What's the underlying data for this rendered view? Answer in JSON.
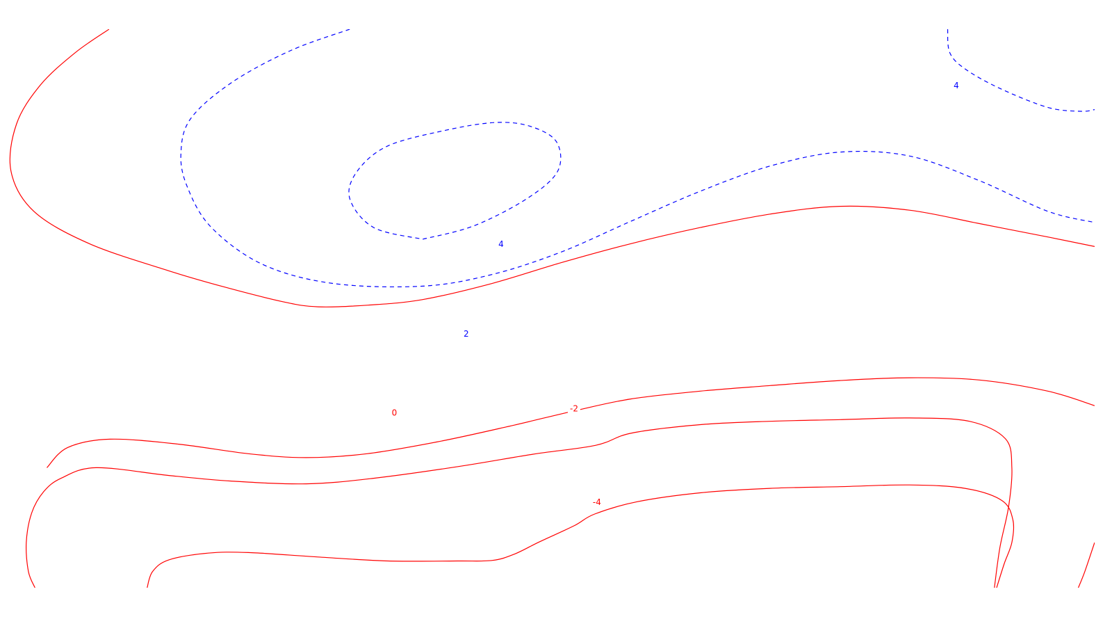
{
  "chart_data": {
    "type": "contour",
    "title": "",
    "xlabel": "",
    "ylabel": "",
    "xlim": [
      0,
      100
    ],
    "ylim": [
      0,
      100
    ],
    "grid": false,
    "axes_visible": false,
    "positive_style": {
      "color": "#0000ff",
      "line": "dashed"
    },
    "nonpositive_style": {
      "color": "#ff0000",
      "line": "solid"
    },
    "contours": [
      {
        "level": 2,
        "label": "2",
        "line": "dashed",
        "color": "#0000ff",
        "points": [
          [
            31.6,
            100
          ],
          [
            26.2,
            96.2
          ],
          [
            20.8,
            90.5
          ],
          [
            17.0,
            84.0
          ],
          [
            16.1,
            77.7
          ],
          [
            16.7,
            71.7
          ],
          [
            18.9,
            64.5
          ],
          [
            23.6,
            57.9
          ],
          [
            30.0,
            54.5
          ],
          [
            38.3,
            54.0
          ],
          [
            44.7,
            56.1
          ],
          [
            51.0,
            60.1
          ],
          [
            57.4,
            65.6
          ],
          [
            63.8,
            71.0
          ],
          [
            70.2,
            75.5
          ],
          [
            76.6,
            78.0
          ],
          [
            83.0,
            77.3
          ],
          [
            89.4,
            72.9
          ],
          [
            95.7,
            67.4
          ],
          [
            100,
            65.4
          ]
        ]
      },
      {
        "level": 4,
        "label": "4",
        "line": "dashed",
        "color": "#0000ff",
        "points": [
          [
            38.3,
            62.4
          ],
          [
            43.0,
            64.8
          ],
          [
            47.9,
            69.7
          ],
          [
            50.7,
            74.6
          ],
          [
            50.6,
            79.8
          ],
          [
            48.2,
            82.6
          ],
          [
            45.0,
            83.3
          ],
          [
            40.4,
            81.9
          ],
          [
            35.1,
            79.1
          ],
          [
            32.3,
            74.6
          ],
          [
            31.6,
            69.7
          ],
          [
            33.8,
            64.5
          ],
          [
            38.3,
            62.4
          ]
        ]
      },
      {
        "level": 4,
        "label": "4",
        "line": "dashed",
        "color": "#0000ff",
        "points": [
          [
            86.5,
            100
          ],
          [
            86.7,
            95.8
          ],
          [
            88.1,
            92.9
          ],
          [
            91.3,
            89.4
          ],
          [
            95.7,
            86.0
          ],
          [
            98.7,
            85.3
          ],
          [
            100,
            85.6
          ]
        ]
      },
      {
        "level": 0,
        "label": "0",
        "line": "solid",
        "color": "#ff0000",
        "points": [
          [
            9.5,
            100
          ],
          [
            6.4,
            95.8
          ],
          [
            3.2,
            90.0
          ],
          [
            1.0,
            83.0
          ],
          [
            0.5,
            74.6
          ],
          [
            2.6,
            67.4
          ],
          [
            7.7,
            61.6
          ],
          [
            14.9,
            56.8
          ],
          [
            20.0,
            53.9
          ],
          [
            25.5,
            51.2
          ],
          [
            28.7,
            50.3
          ],
          [
            33.3,
            50.6
          ],
          [
            38.3,
            51.6
          ],
          [
            44.7,
            54.5
          ],
          [
            51.0,
            58.2
          ],
          [
            57.4,
            61.6
          ],
          [
            63.8,
            64.5
          ],
          [
            70.2,
            66.9
          ],
          [
            76.6,
            68.3
          ],
          [
            83.0,
            67.6
          ],
          [
            89.4,
            65.2
          ],
          [
            95.7,
            62.8
          ],
          [
            100,
            61.1
          ]
        ]
      },
      {
        "level": -2,
        "label": "-2",
        "line": "solid",
        "color": "#ff0000",
        "points": [
          [
            3.8,
            21.5
          ],
          [
            5.7,
            25.1
          ],
          [
            9.6,
            26.6
          ],
          [
            15.9,
            25.7
          ],
          [
            22.3,
            24.0
          ],
          [
            27.6,
            23.3
          ],
          [
            33.2,
            24.0
          ],
          [
            39.6,
            26.1
          ],
          [
            46.0,
            28.8
          ],
          [
            52.3,
            31.7
          ],
          [
            57.4,
            33.8
          ],
          [
            63.8,
            35.2
          ],
          [
            70.2,
            36.2
          ],
          [
            76.6,
            37.1
          ],
          [
            83.0,
            37.6
          ],
          [
            89.4,
            37.2
          ],
          [
            95.7,
            35.2
          ],
          [
            100,
            32.6
          ]
        ]
      },
      {
        "level": -4,
        "label": "-4",
        "line": "solid",
        "color": "#ff0000",
        "points": [
          [
            2.7,
            0
          ],
          [
            2.1,
            2.9
          ],
          [
            1.9,
            8.1
          ],
          [
            2.4,
            13.4
          ],
          [
            3.5,
            17.2
          ],
          [
            5.1,
            19.6
          ],
          [
            8.3,
            21.5
          ],
          [
            15.0,
            20.1
          ],
          [
            20.7,
            19.1
          ],
          [
            27.6,
            18.6
          ],
          [
            33.8,
            19.6
          ],
          [
            41.6,
            21.7
          ],
          [
            48.4,
            23.9
          ],
          [
            54.2,
            25.5
          ],
          [
            57.5,
            27.7
          ],
          [
            63.8,
            29.2
          ],
          [
            70.2,
            29.8
          ],
          [
            76.6,
            30.1
          ],
          [
            83.0,
            30.4
          ],
          [
            88.5,
            29.8
          ],
          [
            91.8,
            26.7
          ],
          [
            92.4,
            21.5
          ],
          [
            92.1,
            14.5
          ],
          [
            91.3,
            7.2
          ],
          [
            90.8,
            0
          ]
        ]
      },
      {
        "level": -4,
        "label": "-4",
        "line": "solid",
        "color": "#ff0000",
        "points": [
          [
            13.0,
            0
          ],
          [
            13.5,
            2.9
          ],
          [
            15.0,
            5.0
          ],
          [
            18.6,
            6.2
          ],
          [
            22.3,
            6.3
          ],
          [
            28.7,
            5.5
          ],
          [
            35.1,
            4.8
          ],
          [
            41.5,
            4.8
          ],
          [
            44.7,
            4.9
          ],
          [
            46.7,
            6.0
          ],
          [
            49.0,
            8.2
          ],
          [
            52.2,
            11.1
          ],
          [
            54.1,
            13.2
          ],
          [
            58.0,
            15.4
          ],
          [
            63.8,
            17.0
          ],
          [
            70.2,
            17.8
          ],
          [
            76.6,
            18.1
          ],
          [
            83.0,
            18.4
          ],
          [
            88.1,
            17.8
          ],
          [
            91.5,
            15.6
          ],
          [
            92.5,
            12.1
          ],
          [
            92.4,
            8.1
          ],
          [
            91.7,
            4.3
          ],
          [
            91.0,
            0
          ]
        ]
      },
      {
        "level": -4,
        "label": "-4",
        "line": "solid",
        "color": "#ff0000",
        "points": [
          [
            98.5,
            0
          ],
          [
            99.1,
            2.9
          ],
          [
            100,
            8.1
          ]
        ]
      }
    ],
    "contour_labels": [
      {
        "text": "2",
        "x": 42.3,
        "y": 45.5,
        "color": "#0000ff"
      },
      {
        "text": "4",
        "x": 45.5,
        "y": 61.6,
        "color": "#0000ff"
      },
      {
        "text": "4",
        "x": 87.3,
        "y": 90.0,
        "color": "#0000ff"
      },
      {
        "text": "0",
        "x": 35.7,
        "y": 31.4,
        "color": "#ff0000"
      },
      {
        "text": "-2",
        "x": 52.2,
        "y": 32.1,
        "color": "#ff0000"
      },
      {
        "text": "-4",
        "x": 54.3,
        "y": 15.4,
        "color": "#ff0000"
      }
    ]
  }
}
